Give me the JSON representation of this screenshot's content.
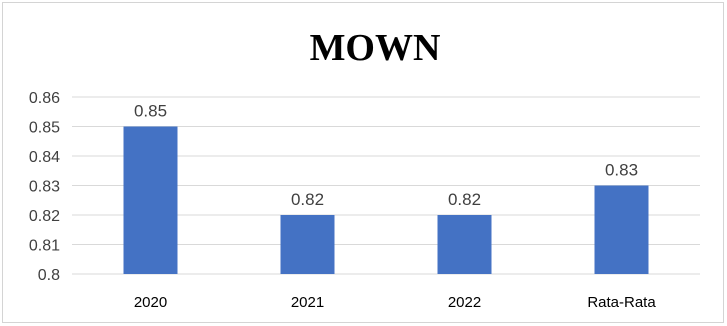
{
  "chart_data": {
    "type": "bar",
    "title": "MOWN",
    "xlabel": "",
    "ylabel": "",
    "categories": [
      "2020",
      "2021",
      "2022",
      "Rata-Rata"
    ],
    "values": [
      0.85,
      0.82,
      0.82,
      0.83
    ],
    "data_labels": [
      "0.85",
      "0.82",
      "0.82",
      "0.83"
    ],
    "ylim": [
      0.8,
      0.86
    ],
    "yticks": [
      0.8,
      0.81,
      0.82,
      0.83,
      0.84,
      0.85,
      0.86
    ],
    "ytick_labels": [
      "0.8",
      "0.81",
      "0.82",
      "0.83",
      "0.84",
      "0.85",
      "0.86"
    ],
    "grid": true,
    "legend": "none",
    "bar_color": "#4472c4",
    "grid_color": "#d9d9d9"
  }
}
